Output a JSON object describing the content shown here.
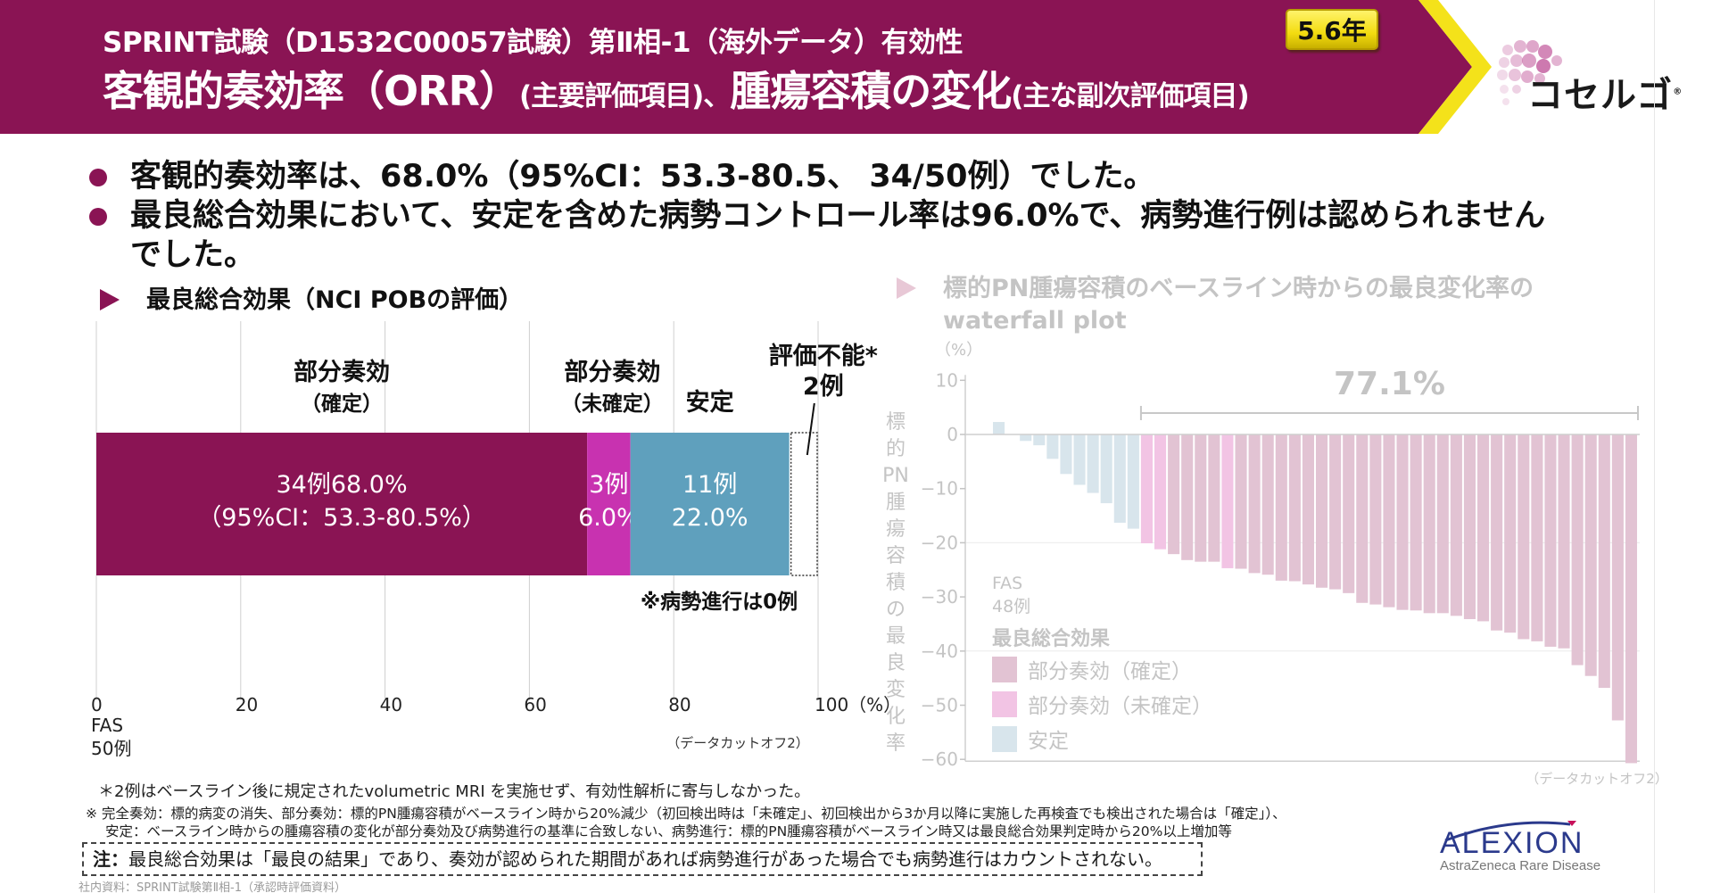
{
  "header": {
    "subtitle": "SPRINT試験（D1532C00057試験）第Ⅱ相-1（海外データ）有効性",
    "title_part1": "客観的奏効率（ORR）",
    "title_part1_note": "(主要評価項目)、",
    "title_part2": "腫瘍容積の変化",
    "title_part2_note": "(主な副次評価項目)",
    "badge": "5.6年",
    "brand_logo_text": "コセルゴ",
    "brand_logo_mark": "®",
    "brand_color": "#8a1454",
    "accent_color": "#f4e21a"
  },
  "bullets": [
    "客観的奏効率は、68.0%（95%CI：53.3-80.5、 34/50例）でした。",
    "最良総合効果において、安定を含めた病勢コントロール率は96.0%で、病勢進行例は認められませんでした。"
  ],
  "bullet_lines": {
    "b2_line1": "最良総合効果において、安定を含めた病勢コントロール率は96.0%で、病勢進行例は認められません",
    "b2_line2": "でした。"
  },
  "left_section": {
    "title": "最良総合効果（NCI POBの評価）",
    "no_progression_note": "※病勢進行は0例",
    "cutoff_note": "（データカットオフ2）",
    "fas_label": "FAS",
    "fas_n": "50例"
  },
  "right_section": {
    "title_line1": "標的PN腫瘍容積のベースライン時からの最良変化率の",
    "title_line2": "waterfall plot",
    "cutoff_note": "（データカットオフ2）"
  },
  "chart_data": [
    {
      "type": "bar",
      "orientation": "horizontal-stacked",
      "title": "最良総合効果（NCI POBの評価）",
      "categories": [
        "FAS 50例"
      ],
      "xlabel": "(%)",
      "xlim": [
        0,
        100
      ],
      "xticks": [
        "0",
        "20",
        "40",
        "60",
        "80",
        "100（%）"
      ],
      "grid": true,
      "series": [
        {
          "name": "部分奏効（確定）",
          "name_line1": "部分奏効",
          "name_line2": "（確定）",
          "n": 34,
          "value": 68.0,
          "label_line1": "34例68.0%",
          "label_line2": "（95%CI：53.3-80.5%）",
          "color": "#8a1454"
        },
        {
          "name": "部分奏効（未確定）",
          "name_line1": "部分奏効",
          "name_line2": "（未確定）",
          "n": 3,
          "value": 6.0,
          "label_line1": "3例",
          "label_line2": "6.0%",
          "color": "#c832b0"
        },
        {
          "name": "安定",
          "name_line1": "安定",
          "name_line2": "",
          "n": 11,
          "value": 22.0,
          "label_line1": "11例",
          "label_line2": "22.0%",
          "color": "#5fa0bd"
        },
        {
          "name": "評価不能*",
          "name_line1": "評価不能*",
          "name_line2": "2例",
          "n": 2,
          "value": 4.0,
          "label_line1": "",
          "label_line2": "",
          "color": "#ffffff"
        }
      ]
    },
    {
      "type": "bar",
      "orientation": "vertical-waterfall",
      "title": "標的PN腫瘍容積のベースライン時からの最良変化率の waterfall plot",
      "ylabel": "標的PN腫瘍容積の最良変化率",
      "yunit": "（%）",
      "ylim": [
        -60,
        10
      ],
      "yticks": [
        10,
        0,
        -10,
        -20,
        -30,
        -40,
        -50,
        -60
      ],
      "n_label_1": "FAS",
      "n_label_2": "48例",
      "bracket_label": "77.1%",
      "bracket_range": [
        12,
        48
      ],
      "legend_title": "最良総合効果",
      "legend_position": "bottom-left",
      "legend": [
        {
          "key": "pr_confirmed",
          "label": "部分奏効（確定）",
          "color": "#e2c3d3"
        },
        {
          "key": "pr_unconfirmed",
          "label": "部分奏効（未確定）",
          "color": "#f2c4e4"
        },
        {
          "key": "sd",
          "label": "安定",
          "color": "#d8e5ec"
        }
      ],
      "values": [
        2.3,
        0,
        -1.2,
        -2.0,
        -4.5,
        -7.3,
        -9.3,
        -10.8,
        -12.7,
        -16.3,
        -17.4,
        -20.1,
        -21.2,
        -22.1,
        -23.2,
        -23.5,
        -23.5,
        -24.7,
        -24.8,
        -25.6,
        -25.9,
        -27.0,
        -27.1,
        -27.7,
        -28.3,
        -28.6,
        -29.3,
        -31.1,
        -31.4,
        -31.9,
        -32.4,
        -32.5,
        -33.0,
        -33.0,
        -33.5,
        -34.1,
        -34.5,
        -36.2,
        -36.6,
        -37.8,
        -38.2,
        -39.2,
        -39.5,
        -42.6,
        -44.6,
        -46.8,
        -52.8,
        -60.7
      ],
      "groups": [
        "sd",
        "sd",
        "sd",
        "sd",
        "sd",
        "sd",
        "sd",
        "sd",
        "sd",
        "sd",
        "sd",
        "pr_unconfirmed",
        "pr_unconfirmed",
        "pr_confirmed",
        "pr_confirmed",
        "pr_confirmed",
        "pr_confirmed",
        "pr_unconfirmed",
        "pr_confirmed",
        "pr_confirmed",
        "pr_confirmed",
        "pr_confirmed",
        "pr_confirmed",
        "pr_confirmed",
        "pr_confirmed",
        "pr_confirmed",
        "pr_confirmed",
        "pr_confirmed",
        "pr_confirmed",
        "pr_confirmed",
        "pr_confirmed",
        "pr_confirmed",
        "pr_confirmed",
        "pr_confirmed",
        "pr_confirmed",
        "pr_confirmed",
        "pr_confirmed",
        "pr_confirmed",
        "pr_confirmed",
        "pr_confirmed",
        "pr_confirmed",
        "pr_confirmed",
        "pr_confirmed",
        "pr_confirmed",
        "pr_confirmed",
        "pr_confirmed",
        "pr_confirmed",
        "pr_confirmed"
      ]
    }
  ],
  "footnotes": {
    "asterisk": "＊2例はベースライン後に規定されたvolumetric MRI を実施せず、有効性解析に寄与しなかった。",
    "definitions_line1": "※ 完全奏効：標的病変の消失、部分奏効：標的PN腫瘍容積がベースライン時から20%減少（初回検出時は「未確定」、初回検出から3か月以降に実施した再検査でも検出された場合は「確定」）、",
    "definitions_line2": "安定：ベースライン時からの腫瘍容積の変化が部分奏効及び病勢進行の基準に合致しない、病勢進行：標的PN腫瘍容積がベースライン時又は最良総合効果判定時から20%以上増加等",
    "note_label": "注：",
    "note_text": "最良総合効果は「最良の結果」であり、奏効が認められた期間があれば病勢進行があった場合でも病勢進行はカウントされない。",
    "source": "社内資料：SPRINT試験第Ⅱ相-1（承認時評価資料）"
  },
  "company_logo": {
    "name": "ALEXION",
    "tagline": "AstraZeneca Rare Disease",
    "color": "#2b3a8c"
  }
}
